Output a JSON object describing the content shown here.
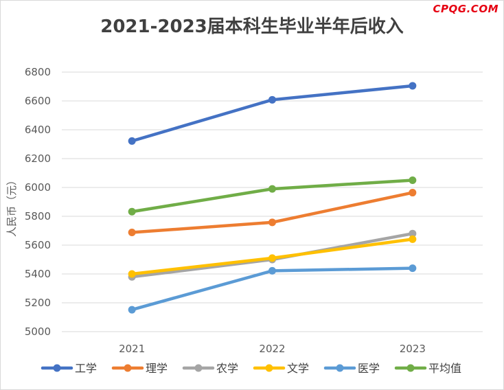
{
  "watermark": "CPQG.COM",
  "chart_data": {
    "type": "line",
    "title": "2021-2023届本科生毕业半年后收入",
    "xlabel": "",
    "ylabel": "人民币（元）",
    "categories": [
      "2021",
      "2022",
      "2023"
    ],
    "ylim": [
      5000,
      6800
    ],
    "yticks": [
      5000,
      5200,
      5400,
      5600,
      5800,
      6000,
      6200,
      6400,
      6600,
      6800
    ],
    "grid": true,
    "legend": "bottom",
    "series": [
      {
        "name": "工学",
        "color": "#4472c4",
        "values": [
          6322,
          6608,
          6705
        ]
      },
      {
        "name": "理学",
        "color": "#ed7d31",
        "values": [
          5688,
          5758,
          5964
        ]
      },
      {
        "name": "农学",
        "color": "#a5a5a5",
        "values": [
          5380,
          5500,
          5680
        ]
      },
      {
        "name": "文学",
        "color": "#ffc000",
        "values": [
          5400,
          5510,
          5641
        ]
      },
      {
        "name": "医学",
        "color": "#5b9bd5",
        "values": [
          5152,
          5422,
          5440
        ]
      },
      {
        "name": "平均值",
        "color": "#70ad47",
        "values": [
          5832,
          5990,
          6050
        ]
      }
    ]
  }
}
